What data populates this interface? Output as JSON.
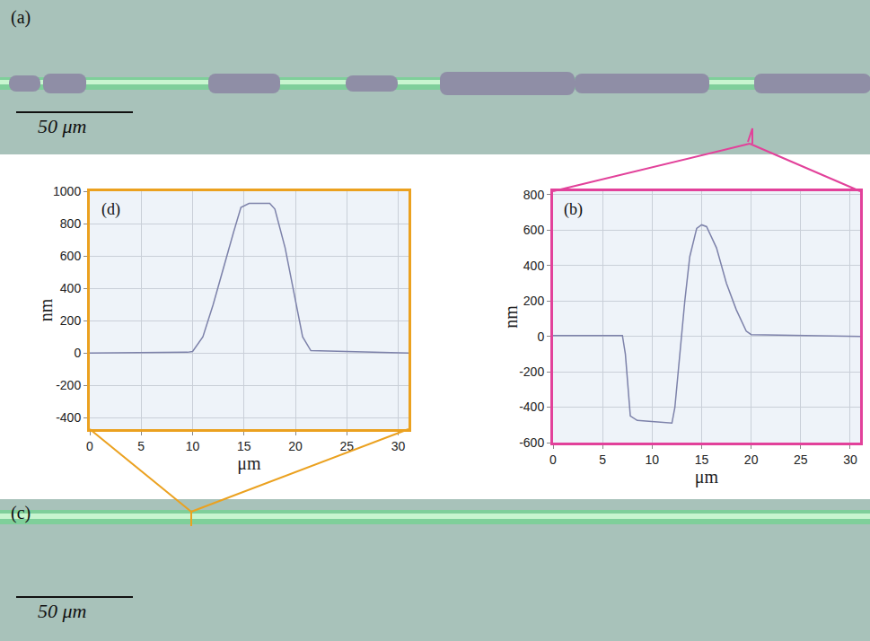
{
  "chart_data": [
    {
      "type": "line",
      "label": "(d)",
      "color": "#7d82aa",
      "frame_color": "#eba11f",
      "x_label": "μm",
      "y_label": "nm",
      "grid": true,
      "x": [
        0,
        5,
        9.5,
        10,
        11,
        12,
        13,
        14,
        14.7,
        15.5,
        17.5,
        18,
        19,
        20,
        20.7,
        21.5,
        25,
        31
      ],
      "values": [
        0,
        2,
        5,
        10,
        100,
        300,
        530,
        750,
        900,
        925,
        925,
        890,
        650,
        330,
        100,
        15,
        10,
        0
      ],
      "xlim": [
        0,
        31
      ],
      "xticks": [
        0,
        5,
        10,
        15,
        20,
        25,
        30
      ],
      "ylim": [
        -470,
        1000
      ],
      "yticks": [
        -400,
        -200,
        0,
        200,
        400,
        600,
        800,
        1000
      ]
    },
    {
      "type": "line",
      "label": "(b)",
      "color": "#7d82aa",
      "frame_color": "#e2419a",
      "x_label": "μm",
      "y_label": "nm",
      "grid": true,
      "x": [
        0,
        7,
        7.3,
        7.8,
        8.5,
        10,
        12,
        12.3,
        12.8,
        13.3,
        13.8,
        14.5,
        15,
        15.5,
        16.5,
        17.5,
        18.5,
        19.5,
        20,
        25,
        31
      ],
      "values": [
        5,
        5,
        -100,
        -450,
        -475,
        -480,
        -490,
        -400,
        -100,
        200,
        450,
        610,
        630,
        620,
        500,
        300,
        150,
        30,
        10,
        5,
        0
      ],
      "xlim": [
        0,
        31
      ],
      "xticks": [
        0,
        5,
        10,
        15,
        20,
        25,
        30
      ],
      "ylim": [
        -600,
        820
      ],
      "yticks": [
        -600,
        -400,
        -200,
        0,
        200,
        400,
        600,
        800
      ]
    }
  ],
  "images": [
    {
      "label": "(a)",
      "scale_bar": "50 μm"
    },
    {
      "label": "(c)",
      "scale_bar": "50 μm"
    }
  ]
}
